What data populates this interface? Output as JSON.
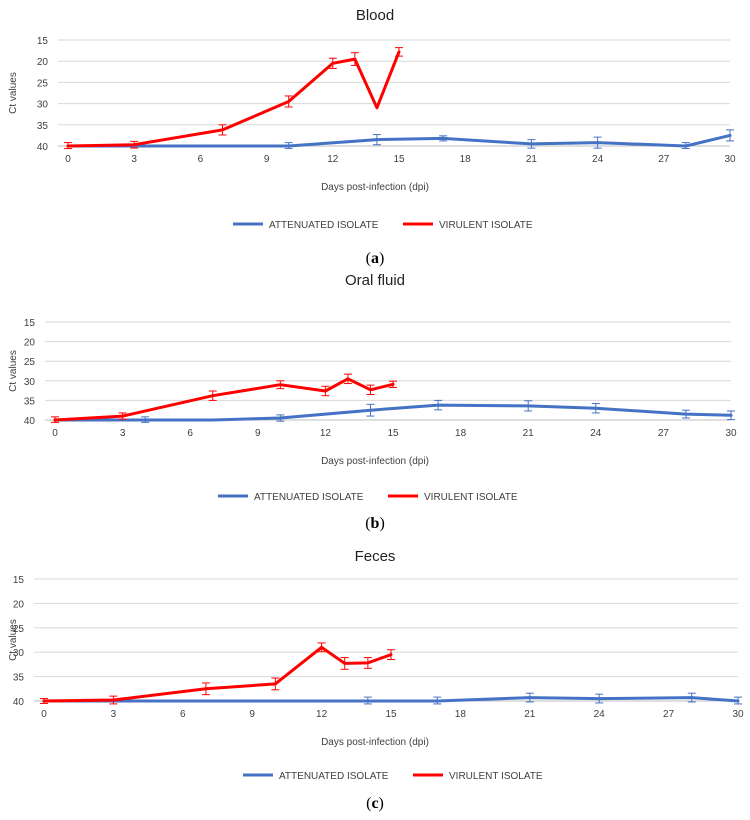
{
  "captions": [
    "a",
    "b",
    "c"
  ],
  "chart_data": [
    {
      "type": "line",
      "title": "Blood",
      "xlabel": "Days post-infection (dpi)",
      "ylabel": "Ct values",
      "xlim": [
        0,
        30
      ],
      "ylim": [
        40,
        15
      ],
      "y_inverted": true,
      "x_ticks": [
        "0",
        "3",
        "6",
        "9",
        "12",
        "15",
        "18",
        "21",
        "24",
        "27",
        "30"
      ],
      "y_ticks": [
        "15",
        "20",
        "25",
        "30",
        "35",
        "40"
      ],
      "grid": "horizontal",
      "legend_position": "bottom",
      "series": [
        {
          "name": "ATTENUATED ISOLATE",
          "color": "#4472C4",
          "points": [
            {
              "x": 0,
              "y": 40,
              "err": 0
            },
            {
              "x": 3,
              "y": 40,
              "err": 0
            },
            {
              "x": 7,
              "y": 40,
              "err": 0
            },
            {
              "x": 10,
              "y": 40,
              "err": 0.8
            },
            {
              "x": 14,
              "y": 38.5,
              "err": 1.2
            },
            {
              "x": 17,
              "y": 38.2,
              "err": 0.6
            },
            {
              "x": 21,
              "y": 39.5,
              "err": 1.0
            },
            {
              "x": 24,
              "y": 39.2,
              "err": 1.3
            },
            {
              "x": 28,
              "y": 40,
              "err": 0.8
            },
            {
              "x": 30,
              "y": 37.5,
              "err": 1.3
            }
          ]
        },
        {
          "name": "VIRULENT ISOLATE",
          "color": "#FF0000",
          "points": [
            {
              "x": 0,
              "y": 40,
              "err": 0.8
            },
            {
              "x": 3,
              "y": 39.7,
              "err": 0.8
            },
            {
              "x": 7,
              "y": 36.2,
              "err": 1.2
            },
            {
              "x": 10,
              "y": 29.5,
              "err": 1.3
            },
            {
              "x": 12,
              "y": 20.5,
              "err": 1.2
            },
            {
              "x": 13,
              "y": 19.5,
              "err": 1.5
            },
            {
              "x": 14,
              "y": 31.0,
              "err": 0
            },
            {
              "x": 15,
              "y": 17.8,
              "err": 1.0
            }
          ]
        }
      ]
    },
    {
      "type": "line",
      "title": "Oral fluid",
      "xlabel": "Days post-infection (dpi)",
      "ylabel": "Ct values",
      "xlim": [
        0,
        30
      ],
      "ylim": [
        40,
        15
      ],
      "y_inverted": true,
      "x_ticks": [
        "0",
        "3",
        "6",
        "9",
        "12",
        "15",
        "18",
        "21",
        "24",
        "27",
        "30"
      ],
      "y_ticks": [
        "15",
        "20",
        "25",
        "30",
        "35",
        "40"
      ],
      "grid": "horizontal",
      "legend_position": "bottom",
      "series": [
        {
          "name": "ATTENUATED ISOLATE",
          "color": "#4472C4",
          "points": [
            {
              "x": 0,
              "y": 40,
              "err": 0
            },
            {
              "x": 4,
              "y": 40,
              "err": 0.8
            },
            {
              "x": 7,
              "y": 40,
              "err": 0
            },
            {
              "x": 10,
              "y": 39.5,
              "err": 0.8
            },
            {
              "x": 14,
              "y": 37.5,
              "err": 1.5
            },
            {
              "x": 17,
              "y": 36.2,
              "err": 1.2
            },
            {
              "x": 21,
              "y": 36.4,
              "err": 1.3
            },
            {
              "x": 24,
              "y": 37.0,
              "err": 1.2
            },
            {
              "x": 28,
              "y": 38.5,
              "err": 1.0
            },
            {
              "x": 30,
              "y": 38.8,
              "err": 1.1
            }
          ]
        },
        {
          "name": "VIRULENT ISOLATE",
          "color": "#FF0000",
          "points": [
            {
              "x": 0,
              "y": 40,
              "err": 0.8
            },
            {
              "x": 3,
              "y": 39.0,
              "err": 0.8
            },
            {
              "x": 7,
              "y": 33.8,
              "err": 1.2
            },
            {
              "x": 10,
              "y": 31.0,
              "err": 1.0
            },
            {
              "x": 12,
              "y": 32.6,
              "err": 1.2
            },
            {
              "x": 13,
              "y": 29.5,
              "err": 1.2
            },
            {
              "x": 14,
              "y": 32.3,
              "err": 1.2
            },
            {
              "x": 15,
              "y": 30.9,
              "err": 0.8
            }
          ]
        }
      ]
    },
    {
      "type": "line",
      "title": "Feces",
      "xlabel": "Days post-infection (dpi)",
      "ylabel": "Ct values",
      "xlim": [
        0,
        30
      ],
      "ylim": [
        40,
        15
      ],
      "y_inverted": true,
      "x_ticks": [
        "0",
        "3",
        "6",
        "9",
        "12",
        "15",
        "18",
        "21",
        "24",
        "27",
        "30"
      ],
      "y_ticks": [
        "15",
        "20",
        "25",
        "30",
        "35",
        "40"
      ],
      "grid": "horizontal",
      "legend_position": "bottom",
      "series": [
        {
          "name": "ATTENUATED ISOLATE",
          "color": "#4472C4",
          "points": [
            {
              "x": 0,
              "y": 40,
              "err": 0
            },
            {
              "x": 3,
              "y": 40,
              "err": 0
            },
            {
              "x": 7,
              "y": 40,
              "err": 0
            },
            {
              "x": 10,
              "y": 40,
              "err": 0
            },
            {
              "x": 14,
              "y": 40,
              "err": 0.8
            },
            {
              "x": 17,
              "y": 40,
              "err": 0.8
            },
            {
              "x": 21,
              "y": 39.3,
              "err": 0.9
            },
            {
              "x": 24,
              "y": 39.5,
              "err": 0.9
            },
            {
              "x": 28,
              "y": 39.3,
              "err": 0.9
            },
            {
              "x": 30,
              "y": 40,
              "err": 0.8
            }
          ]
        },
        {
          "name": "VIRULENT ISOLATE",
          "color": "#FF0000",
          "points": [
            {
              "x": 0,
              "y": 40,
              "err": 0.5
            },
            {
              "x": 3,
              "y": 39.8,
              "err": 0.8
            },
            {
              "x": 7,
              "y": 37.5,
              "err": 1.2
            },
            {
              "x": 10,
              "y": 36.5,
              "err": 1.2
            },
            {
              "x": 12,
              "y": 29.0,
              "err": 0.9
            },
            {
              "x": 13,
              "y": 32.3,
              "err": 1.2
            },
            {
              "x": 14,
              "y": 32.2,
              "err": 1.1
            },
            {
              "x": 15,
              "y": 30.5,
              "err": 1.0
            }
          ]
        }
      ]
    }
  ]
}
